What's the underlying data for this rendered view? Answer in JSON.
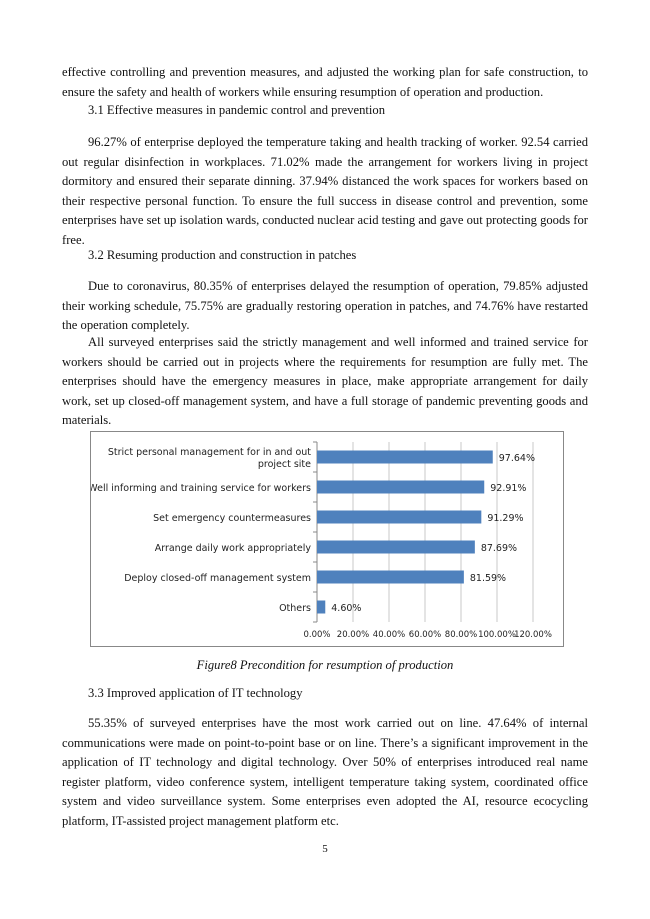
{
  "paragraphs": {
    "p0": "effective controlling and prevention measures, and adjusted the working plan for safe construction, to ensure the safety and health of workers while ensuring resumption of operation and production.",
    "h31": "3.1 Effective measures in pandemic control and prevention",
    "p1": "96.27% of enterprise deployed the temperature taking and health tracking of worker. 92.54 carried out regular disinfection in workplaces. 71.02% made the arrangement for workers living in project dormitory and ensured their separate dinning. 37.94% distanced the work spaces for workers based on their respective personal function. To ensure the full success in disease control and prevention, some enterprises have set up isolation wards, conducted nuclear acid testing and gave out protecting goods for free.",
    "h32": "3.2 Resuming production and construction in patches",
    "p2": "Due to coronavirus, 80.35% of enterprises delayed the resumption of operation, 79.85% adjusted their working schedule, 75.75% are gradually restoring operation in patches, and 74.76% have restarted the operation completely.",
    "p3": "All surveyed enterprises said the strictly management and well informed and trained service for workers should be carried out in projects where the requirements for resumption are fully met. The enterprises should have the emergency measures in place, make appropriate arrangement for daily work, set up closed-off management system, and have a full storage of pandemic preventing goods and materials.",
    "h33": "3.3 Improved application of IT technology",
    "p4": "55.35% of surveyed enterprises have the most work carried out on line. 47.64% of internal communications were made on point-to-point base or on line. There’s a significant improvement in the application of IT technology and digital technology. Over 50% of enterprises introduced real name register platform, video conference system, intelligent temperature taking system, coordinated office system and video surveillance system. Some enterprises even adopted the AI, resource ecocycling platform, IT-assisted project management platform etc."
  },
  "caption": "Figure8    Precondition for resumption of production",
  "page_number": "5",
  "chart_data": {
    "type": "bar",
    "orientation": "horizontal",
    "categories": [
      [
        "Strict personal management for in and out",
        "project site"
      ],
      [
        "Well informing and training service for workers"
      ],
      [
        "Set emergency countermeasures"
      ],
      [
        "Arrange daily work appropriately"
      ],
      [
        "Deploy closed-off management system"
      ],
      [
        "Others"
      ]
    ],
    "values": [
      97.64,
      92.91,
      91.29,
      87.69,
      81.59,
      4.6
    ],
    "data_labels": [
      "97.64%",
      "92.91%",
      "91.29%",
      "87.69%",
      "81.59%",
      "4.60%"
    ],
    "xlim": [
      0,
      120
    ],
    "xticks": [
      "0.00%",
      "20.00%",
      "40.00%",
      "60.00%",
      "80.00%",
      "100.00%",
      "120.00%"
    ],
    "grid": true,
    "bar_color": "#4f81bd"
  }
}
